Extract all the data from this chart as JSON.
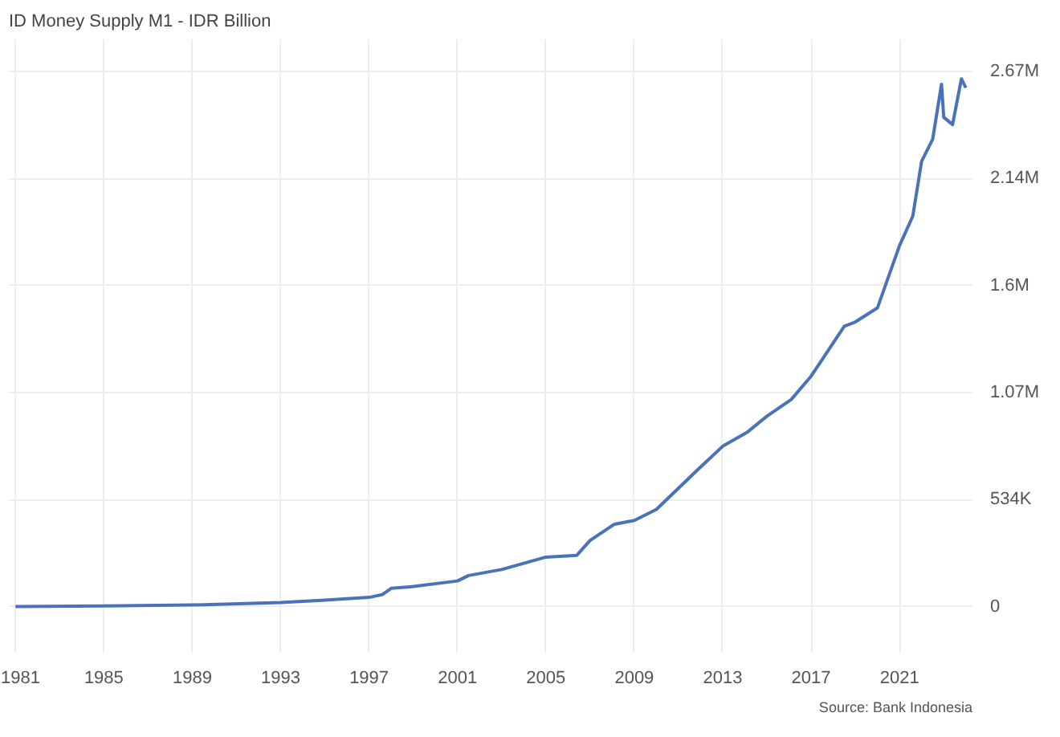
{
  "chart_data": {
    "type": "line",
    "title": "ID Money Supply M1 - IDR Billion",
    "annotations": [
      "Source: Bank Indonesia"
    ],
    "x": [
      1981,
      1985,
      1989,
      1993,
      1995,
      1997,
      1997.6,
      1998,
      1999,
      2001,
      2001.5,
      2003,
      2005,
      2006.4,
      2007,
      2008.1,
      2009,
      2010,
      2011.9,
      2013,
      2014.1,
      2015,
      2016.1,
      2017,
      2018.5,
      2019,
      2020,
      2021,
      2021.6,
      2022,
      2022.5,
      2022.9,
      2023,
      2023.4,
      2023.8,
      2024
    ],
    "series": [
      {
        "color": "#4a72b8",
        "values": [
          0,
          3000,
          8000,
          20000,
          32000,
          46000,
          60000,
          91000,
          100000,
          128000,
          155000,
          185000,
          247000,
          256000,
          330000,
          411000,
          430000,
          485000,
          686000,
          800000,
          869000,
          950000,
          1033000,
          1150000,
          1399000,
          1420000,
          1490000,
          1801000,
          1948000,
          2222000,
          2332000,
          2606000,
          2441000,
          2405000,
          2633000,
          2588000
        ]
      }
    ],
    "xlim": [
      1980.7,
      2024.3
    ],
    "xticks": [
      1981,
      1985,
      1989,
      1993,
      1997,
      2001,
      2005,
      2009,
      2013,
      2017,
      2021
    ],
    "ylim": [
      -230000,
      2830000
    ],
    "yticks": [
      {
        "value": 0,
        "label": "0"
      },
      {
        "value": 534000,
        "label": "534K"
      },
      {
        "value": 1068000,
        "label": "1.07M"
      },
      {
        "value": 1602000,
        "label": "1.6M"
      },
      {
        "value": 2136000,
        "label": "2.14M"
      },
      {
        "value": 2670000,
        "label": "2.67M"
      }
    ],
    "grid": true,
    "line_style": "solid"
  }
}
